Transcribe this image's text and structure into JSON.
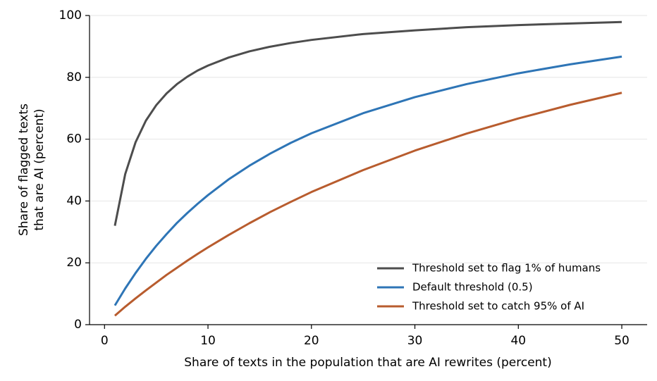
{
  "chart_data": {
    "type": "line",
    "xlabel": "Share of texts in the population that are AI rewrites (percent)",
    "ylabel": [
      "Share of flagged texts",
      "that are AI (percent)"
    ],
    "x": [
      1,
      2,
      3,
      4,
      5,
      6,
      7,
      8,
      9,
      10,
      12,
      14,
      16,
      18,
      20,
      25,
      30,
      35,
      40,
      45,
      50
    ],
    "series": [
      {
        "name": "Threshold set to flag 1% of humans",
        "color": "#4d4d4d",
        "values": [
          32.0,
          48.7,
          59.0,
          66.0,
          71.0,
          74.8,
          77.8,
          80.2,
          82.2,
          83.8,
          86.4,
          88.4,
          89.9,
          91.1,
          92.1,
          94.0,
          95.2,
          96.2,
          96.9,
          97.4,
          97.9
        ]
      },
      {
        "name": "Default threshold (0.5)",
        "color": "#2e75b6",
        "values": [
          6.2,
          11.7,
          16.7,
          21.3,
          25.5,
          29.3,
          32.9,
          36.1,
          39.1,
          41.9,
          47.0,
          51.4,
          55.3,
          58.8,
          61.9,
          68.4,
          73.6,
          77.8,
          81.3,
          84.2,
          86.7
        ]
      },
      {
        "name": "Threshold set to catch 95% of AI",
        "color": "#b85c2e",
        "values": [
          2.9,
          5.8,
          8.5,
          11.1,
          13.6,
          16.1,
          18.4,
          20.7,
          22.9,
          25.0,
          29.0,
          32.8,
          36.4,
          39.7,
          42.9,
          50.0,
          56.3,
          61.8,
          66.7,
          71.1,
          75.0
        ]
      }
    ],
    "xlim": [
      -1.45,
      52.45
    ],
    "xticks": [
      0,
      10,
      20,
      30,
      40,
      50
    ],
    "ylim": [
      0,
      100
    ],
    "yticks": [
      0,
      20,
      40,
      60,
      80,
      100
    ],
    "grid": true,
    "legend": "lower right"
  }
}
